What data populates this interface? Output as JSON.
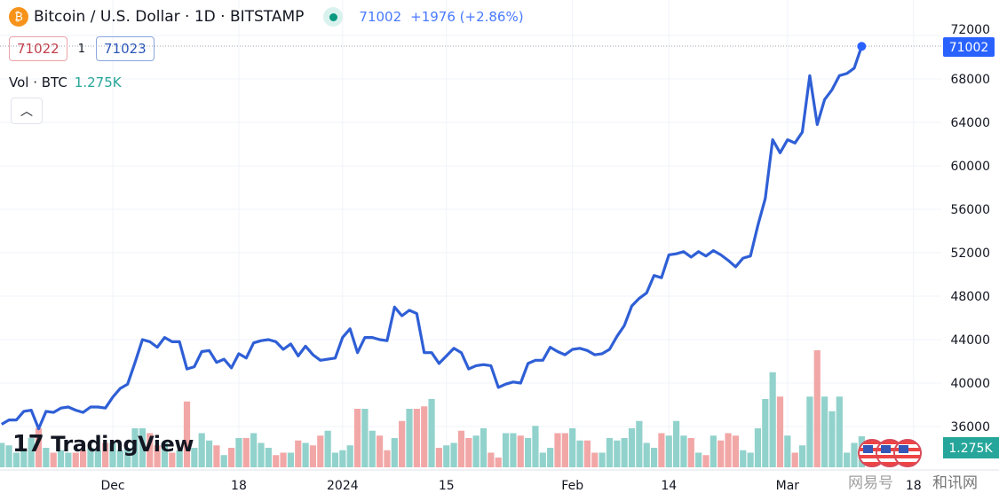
{
  "header": {
    "symbol_icon": "bitcoin-icon",
    "title": "Bitcoin / U.S. Dollar · 1D · BITSTAMP",
    "market_status": "live-dot-icon",
    "last": "71002",
    "change": "+1976 (+2.86%)"
  },
  "bidask": {
    "bid": "71022",
    "spread": "1",
    "ask": "71023"
  },
  "volume_legend": {
    "label": "Vol · BTC",
    "value": "1.275K"
  },
  "collapse_icon": "chevron-up-icon",
  "watermark": {
    "logo": "TradingView",
    "cn1": "网易号",
    "cn2": "和讯网"
  },
  "colors": {
    "line": "#2f5fd6",
    "up_volume": "#92d2cc",
    "down_volume": "#f2a7a7",
    "price_label": "#2962ff",
    "volume_label": "#26a69a"
  },
  "chart_data": {
    "type": "line",
    "title": "Bitcoin / U.S. Dollar · 1D · BITSTAMP",
    "ylim": [
      35000,
      73000
    ],
    "grid": true,
    "y_ticks": [
      "72000",
      "68000",
      "64000",
      "60000",
      "56000",
      "52000",
      "48000",
      "44000",
      "40000",
      "36000"
    ],
    "x_ticks": [
      {
        "label": "Dec",
        "date": "2023-12-01"
      },
      {
        "label": "18",
        "date": "2023-12-18"
      },
      {
        "label": "2024",
        "date": "2024-01-01"
      },
      {
        "label": "15",
        "date": "2024-01-15"
      },
      {
        "label": "Feb",
        "date": "2024-02-01"
      },
      {
        "label": "14",
        "date": "2024-02-14"
      },
      {
        "label": "Mar",
        "date": "2024-03-01"
      },
      {
        "label": "18",
        "date": "2024-03-18"
      }
    ],
    "last_price_label": "71002",
    "last_volume_label": "1.275K",
    "dates": [
      "2023-11-16",
      "2023-11-17",
      "2023-11-18",
      "2023-11-19",
      "2023-11-20",
      "2023-11-21",
      "2023-11-22",
      "2023-11-23",
      "2023-11-24",
      "2023-11-25",
      "2023-11-26",
      "2023-11-27",
      "2023-11-28",
      "2023-11-29",
      "2023-11-30",
      "2023-12-01",
      "2023-12-02",
      "2023-12-03",
      "2023-12-04",
      "2023-12-05",
      "2023-12-06",
      "2023-12-07",
      "2023-12-08",
      "2023-12-09",
      "2023-12-10",
      "2023-12-11",
      "2023-12-12",
      "2023-12-13",
      "2023-12-14",
      "2023-12-15",
      "2023-12-16",
      "2023-12-17",
      "2023-12-18",
      "2023-12-19",
      "2023-12-20",
      "2023-12-21",
      "2023-12-22",
      "2023-12-23",
      "2023-12-24",
      "2023-12-25",
      "2023-12-26",
      "2023-12-27",
      "2023-12-28",
      "2023-12-29",
      "2023-12-30",
      "2023-12-31",
      "2024-01-01",
      "2024-01-02",
      "2024-01-03",
      "2024-01-04",
      "2024-01-05",
      "2024-01-06",
      "2024-01-07",
      "2024-01-08",
      "2024-01-09",
      "2024-01-10",
      "2024-01-11",
      "2024-01-12",
      "2024-01-13",
      "2024-01-14",
      "2024-01-15",
      "2024-01-16",
      "2024-01-17",
      "2024-01-18",
      "2024-01-19",
      "2024-01-20",
      "2024-01-21",
      "2024-01-22",
      "2024-01-23",
      "2024-01-24",
      "2024-01-25",
      "2024-01-26",
      "2024-01-27",
      "2024-01-28",
      "2024-01-29",
      "2024-01-30",
      "2024-01-31",
      "2024-02-01",
      "2024-02-02",
      "2024-02-03",
      "2024-02-04",
      "2024-02-05",
      "2024-02-06",
      "2024-02-07",
      "2024-02-08",
      "2024-02-09",
      "2024-02-10",
      "2024-02-11",
      "2024-02-12",
      "2024-02-13",
      "2024-02-14",
      "2024-02-15",
      "2024-02-16",
      "2024-02-17",
      "2024-02-18",
      "2024-02-19",
      "2024-02-20",
      "2024-02-21",
      "2024-02-22",
      "2024-02-23",
      "2024-02-24",
      "2024-02-25",
      "2024-02-26",
      "2024-02-27",
      "2024-02-28",
      "2024-02-29",
      "2024-03-01",
      "2024-03-02",
      "2024-03-03",
      "2024-03-04",
      "2024-03-05",
      "2024-03-06",
      "2024-03-07",
      "2024-03-08",
      "2024-03-09",
      "2024-03-10",
      "2024-03-11"
    ],
    "close": [
      36200,
      36600,
      36600,
      37400,
      37500,
      35800,
      37400,
      37300,
      37700,
      37800,
      37500,
      37300,
      37800,
      37800,
      37700,
      38700,
      39500,
      39900,
      41900,
      44000,
      43800,
      43300,
      44200,
      43800,
      43800,
      41300,
      41500,
      42900,
      43000,
      41900,
      42200,
      41400,
      42700,
      42300,
      43700,
      43900,
      44000,
      43800,
      43100,
      43600,
      42500,
      43400,
      42600,
      42100,
      42200,
      42300,
      44200,
      45000,
      42800,
      44200,
      44200,
      44000,
      43900,
      47000,
      46200,
      46700,
      46400,
      42800,
      42800,
      41800,
      42500,
      43200,
      42800,
      41300,
      41600,
      41700,
      41600,
      39600,
      39900,
      40100,
      40000,
      41800,
      42100,
      42100,
      43300,
      42900,
      42600,
      43100,
      43200,
      43000,
      42600,
      42700,
      43100,
      44300,
      45300,
      47100,
      47800,
      48300,
      49900,
      49700,
      51800,
      51900,
      52100,
      51600,
      52100,
      51700,
      52200,
      51800,
      51300,
      50700,
      51500,
      51700,
      54500,
      57000,
      62400,
      61200,
      62400,
      62100,
      63100,
      68300,
      63800,
      66100,
      67000,
      68300,
      68500,
      69000,
      71002
    ],
    "volume_k": [
      1.0,
      0.9,
      0.6,
      0.7,
      1.2,
      1.6,
      0.8,
      0.6,
      0.7,
      0.6,
      0.6,
      0.7,
      0.8,
      0.7,
      1.0,
      1.0,
      0.7,
      0.8,
      1.6,
      1.6,
      1.4,
      0.9,
      1.0,
      0.6,
      0.7,
      2.7,
      0.8,
      1.4,
      1.1,
      0.9,
      0.5,
      0.8,
      1.2,
      1.2,
      1.4,
      1.0,
      0.8,
      0.5,
      0.6,
      0.6,
      1.1,
      1.0,
      0.9,
      1.3,
      1.5,
      0.6,
      0.7,
      0.9,
      2.4,
      2.4,
      1.5,
      1.3,
      0.7,
      1.2,
      1.9,
      2.4,
      2.4,
      2.5,
      2.8,
      0.8,
      0.9,
      1.0,
      1.5,
      1.2,
      1.3,
      1.6,
      0.6,
      0.4,
      1.4,
      1.4,
      1.3,
      1.2,
      1.7,
      0.6,
      0.8,
      1.4,
      1.4,
      1.6,
      1.1,
      1.1,
      0.6,
      0.6,
      1.2,
      1.1,
      1.2,
      1.6,
      1.9,
      1.0,
      0.8,
      1.4,
      1.3,
      1.9,
      1.3,
      1.2,
      0.6,
      0.5,
      1.3,
      1.1,
      1.4,
      1.3,
      0.7,
      0.6,
      1.6,
      2.8,
      3.9,
      2.9,
      1.3,
      0.6,
      0.9,
      2.9,
      4.8,
      2.9,
      2.3,
      2.9,
      0.6,
      1.0,
      1.275
    ]
  }
}
